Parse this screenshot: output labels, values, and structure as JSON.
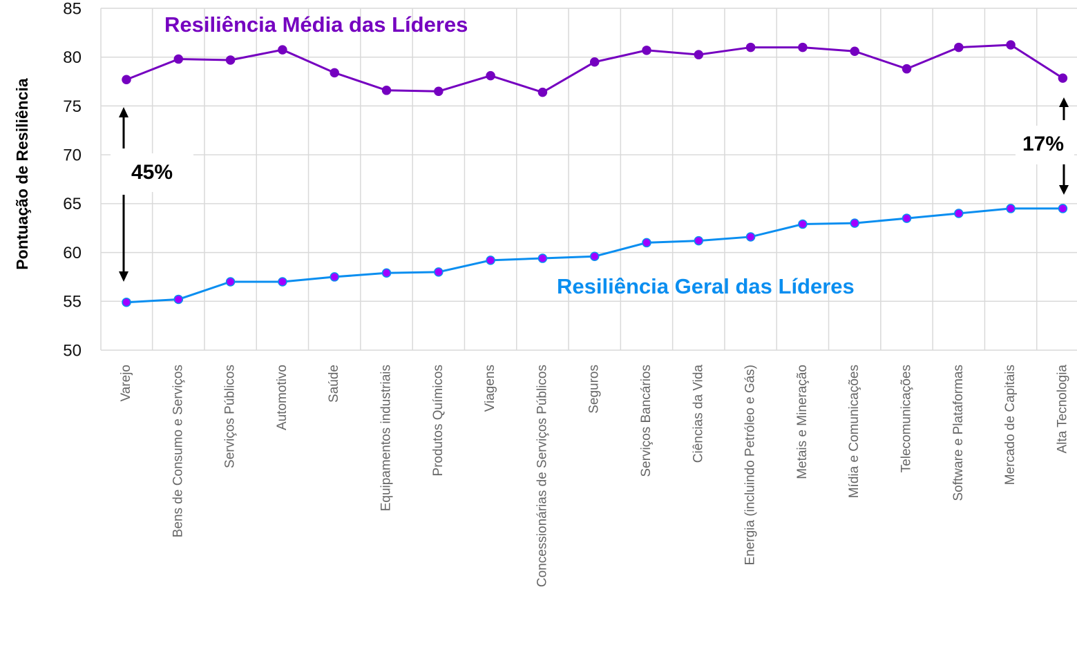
{
  "chart_data": {
    "type": "line",
    "y_label": "Pontuação de Resiliência",
    "categories": [
      "Varejo",
      "Bens de Consumo e Serviços",
      "Serviços Públicos",
      "Automotivo",
      "Saúde",
      "Equipamentos industriais",
      "Produtos Químicos",
      "Viagens",
      "Concessionárias de Serviços Públicos",
      "Seguros",
      "Serviços Bancários",
      "Ciências da Vida",
      "Energia (incluindo Petróleo e Gás)",
      "Metais e Mineração",
      "Mídia e Comunicações",
      "Telecomunicações",
      "Software e Plataformas",
      "Mercado de Capitais",
      "Alta Tecnologia"
    ],
    "series": [
      {
        "name": "Resiliência Média das Líderes",
        "color": "#7500c0",
        "marker_color": "#7500c0",
        "values": [
          77.7,
          79.8,
          79.7,
          80.75,
          78.4,
          76.6,
          76.5,
          78.1,
          76.4,
          79.5,
          80.7,
          80.25,
          81.0,
          81.0,
          80.6,
          78.8,
          81.0,
          81.25,
          77.85
        ]
      },
      {
        "name": "Resiliência Geral das Líderes",
        "color": "#0a8ef0",
        "marker_color": "#a100ff",
        "values": [
          54.9,
          55.2,
          57.0,
          57.0,
          57.5,
          57.9,
          58.0,
          59.2,
          59.4,
          59.6,
          61.0,
          61.2,
          61.6,
          62.9,
          63.0,
          63.5,
          64.0,
          64.5,
          64.5
        ]
      }
    ],
    "annotations": [
      "45%",
      "17%"
    ],
    "ylim": [
      50,
      85
    ],
    "yticks": [
      50,
      55,
      60,
      65,
      70,
      75,
      80,
      85
    ],
    "grid": true
  }
}
